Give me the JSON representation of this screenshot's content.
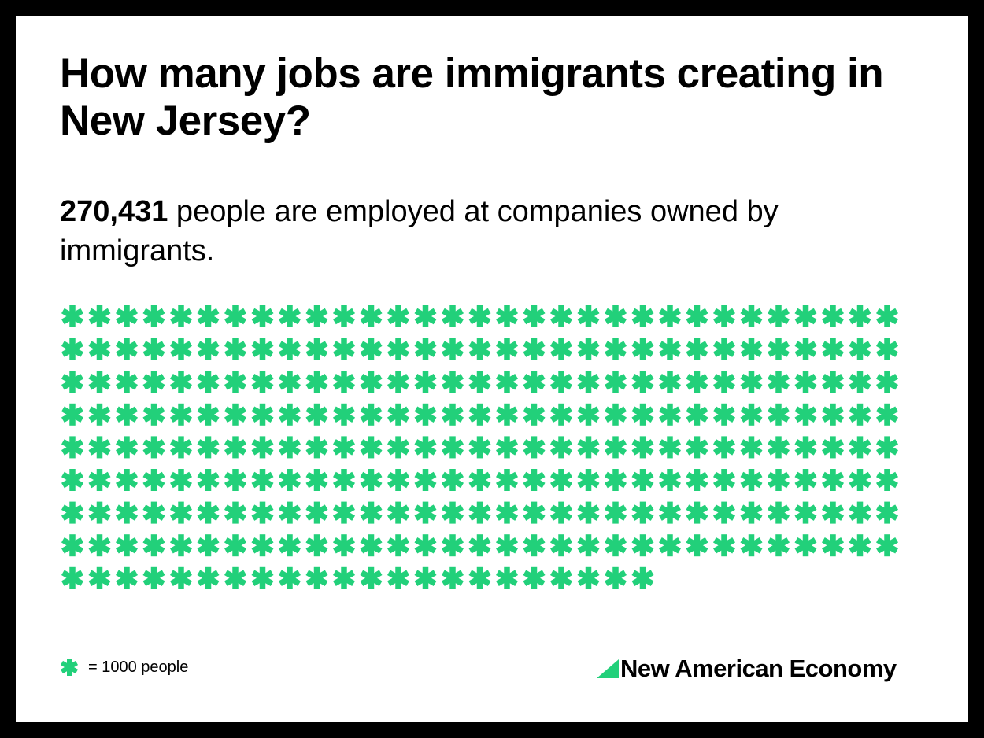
{
  "title": "How many jobs are immigrants creating in New Jersey?",
  "subtitle": {
    "number": "270,431",
    "text": " people are employed at companies owned by immigrants."
  },
  "legend": {
    "label": "= 1000 people"
  },
  "brand": {
    "name": "New American Economy"
  },
  "colors": {
    "accent": "#22d07a",
    "text": "#000000",
    "background": "#ffffff",
    "frame": "#000000"
  },
  "chart_data": {
    "type": "pictogram",
    "icon": "asterisk-icon",
    "unit_value": 1000,
    "total_value": 270431,
    "icon_count": 270,
    "icons_per_row": 31
  }
}
